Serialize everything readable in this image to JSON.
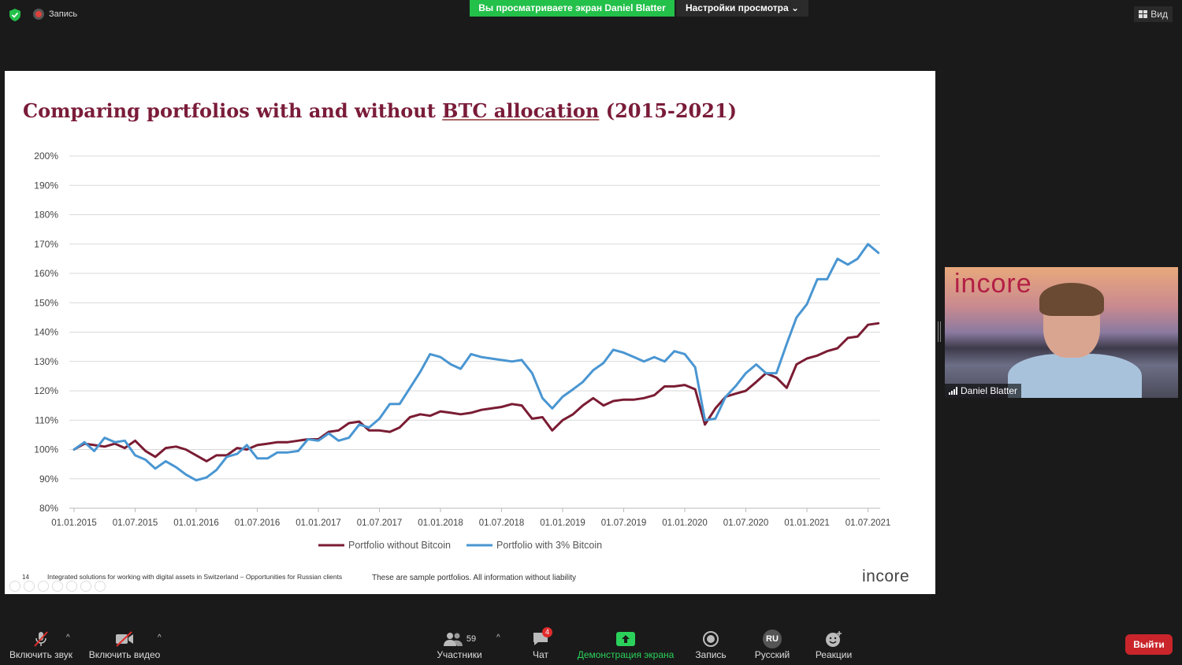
{
  "topbar": {
    "recording_label": "Запись",
    "viewing_banner": "Вы просматриваете экран Daniel Blatter",
    "view_settings": "Настройки просмотра",
    "view_button": "Вид"
  },
  "slide": {
    "title_part1": "Comparing portfolios with and without ",
    "title_part2": "BTC allocation",
    "title_part3": " (2015-2021)",
    "page_number": "14",
    "footer_left": "Integrated solutions for working with digital assets in Switzerland – Opportunities for Russian clients",
    "footer_middle": "These are sample portfolios. All information without liability",
    "logo_text": "incore"
  },
  "chart_data": {
    "type": "line",
    "title": "Comparing portfolios with and without BTC allocation (2015-2021)",
    "ylim": [
      80,
      200
    ],
    "yticks": [
      "200%",
      "190%",
      "180%",
      "170%",
      "160%",
      "150%",
      "140%",
      "130%",
      "120%",
      "110%",
      "100%",
      "90%",
      "80%"
    ],
    "xticks": [
      "01.01.2015",
      "01.07.2015",
      "01.01.2016",
      "01.07.2016",
      "01.01.2017",
      "01.07.2017",
      "01.01.2018",
      "01.07.2018",
      "01.01.2019",
      "01.07.2019",
      "01.01.2020",
      "01.07.2020",
      "01.01.2021",
      "01.07.2021"
    ],
    "x_range": [
      0,
      13.2
    ],
    "grid": true,
    "legend": "bottom",
    "series": [
      {
        "name": "Portfolio without Bitcoin",
        "color": "#7a1c33",
        "x": [
          0,
          0.17,
          0.33,
          0.5,
          0.67,
          0.83,
          1.0,
          1.17,
          1.33,
          1.5,
          1.67,
          1.83,
          2.0,
          2.17,
          2.33,
          2.5,
          2.67,
          2.83,
          3.0,
          3.17,
          3.33,
          3.5,
          3.67,
          3.83,
          4.0,
          4.17,
          4.33,
          4.5,
          4.67,
          4.83,
          5.0,
          5.17,
          5.33,
          5.5,
          5.67,
          5.83,
          6.0,
          6.17,
          6.33,
          6.5,
          6.67,
          6.83,
          7.0,
          7.17,
          7.33,
          7.5,
          7.67,
          7.83,
          8.0,
          8.17,
          8.33,
          8.5,
          8.67,
          8.83,
          9.0,
          9.17,
          9.33,
          9.5,
          9.67,
          9.83,
          10.0,
          10.17,
          10.33,
          10.5,
          10.67,
          10.83,
          11.0,
          11.17,
          11.33,
          11.5,
          11.67,
          11.83,
          12.0,
          12.17,
          12.33,
          12.5,
          12.67,
          12.83,
          13.0,
          13.17
        ],
        "values": [
          100,
          102,
          101.5,
          101,
          102,
          100.5,
          103,
          99.5,
          97.5,
          100.5,
          101,
          100,
          98,
          96,
          98,
          98,
          100.5,
          100,
          101.5,
          102,
          102.5,
          102.5,
          103,
          103.5,
          103.5,
          106,
          106.5,
          109,
          109.5,
          106.5,
          106.5,
          106,
          107.5,
          111,
          112,
          111.5,
          113,
          112.5,
          112,
          112.5,
          113.5,
          114,
          114.5,
          115.5,
          115,
          110.5,
          111,
          106.5,
          110,
          112,
          115,
          117.5,
          115,
          116.5,
          117,
          117,
          117.5,
          118.5,
          121.5,
          121.5,
          122,
          120.5,
          108.5,
          114,
          118,
          119,
          120,
          123,
          126,
          124.5,
          121,
          129,
          131,
          132,
          133.5,
          134.5,
          138,
          138.5,
          142.5,
          143
        ]
      },
      {
        "name": "Portfolio with 3% Bitcoin",
        "color": "#4a96d2",
        "x": [
          0,
          0.17,
          0.33,
          0.5,
          0.67,
          0.83,
          1.0,
          1.17,
          1.33,
          1.5,
          1.67,
          1.83,
          2.0,
          2.17,
          2.33,
          2.5,
          2.67,
          2.83,
          3.0,
          3.17,
          3.33,
          3.5,
          3.67,
          3.83,
          4.0,
          4.17,
          4.33,
          4.5,
          4.67,
          4.83,
          5.0,
          5.17,
          5.33,
          5.5,
          5.67,
          5.83,
          6.0,
          6.17,
          6.33,
          6.5,
          6.67,
          6.83,
          7.0,
          7.17,
          7.33,
          7.5,
          7.67,
          7.83,
          8.0,
          8.17,
          8.33,
          8.5,
          8.67,
          8.83,
          9.0,
          9.17,
          9.33,
          9.5,
          9.67,
          9.83,
          10.0,
          10.17,
          10.33,
          10.5,
          10.67,
          10.83,
          11.0,
          11.17,
          11.33,
          11.5,
          11.67,
          11.83,
          12.0,
          12.17,
          12.33,
          12.5,
          12.67,
          12.83,
          13.0,
          13.17
        ],
        "values": [
          100,
          102.5,
          99.5,
          104,
          102.5,
          103,
          98,
          96.5,
          93.5,
          96,
          94,
          91.5,
          89.5,
          90.5,
          93,
          97.5,
          98.5,
          101.5,
          97,
          97,
          99,
          99,
          99.5,
          103.5,
          103,
          105.5,
          103,
          104,
          108.5,
          107.5,
          110.5,
          115.5,
          115.5,
          121,
          126.5,
          132.5,
          131.5,
          129,
          127.5,
          132.5,
          131.5,
          131,
          130.5,
          130,
          130.5,
          126,
          117.5,
          114,
          118,
          120.5,
          123,
          127,
          129.5,
          134,
          133,
          131.5,
          130,
          131.5,
          130,
          133.5,
          132.5,
          128,
          110,
          110.5,
          118,
          121.5,
          126,
          129,
          126,
          126,
          136,
          145,
          149.5,
          158,
          158,
          165,
          163,
          165,
          170,
          167
        ]
      }
    ]
  },
  "webcam": {
    "logo_text": "incore",
    "participant_name": "Daniel Blatter"
  },
  "bottombar": {
    "unmute": "Включить звук",
    "start_video": "Включить видео",
    "participants_count": "59",
    "participants": "Участники",
    "chat": "Чат",
    "chat_badge": "4",
    "share_screen": "Демонстрация экрана",
    "record": "Запись",
    "language_code": "RU",
    "language": "Русский",
    "reactions": "Реакции",
    "leave": "Выйти"
  }
}
